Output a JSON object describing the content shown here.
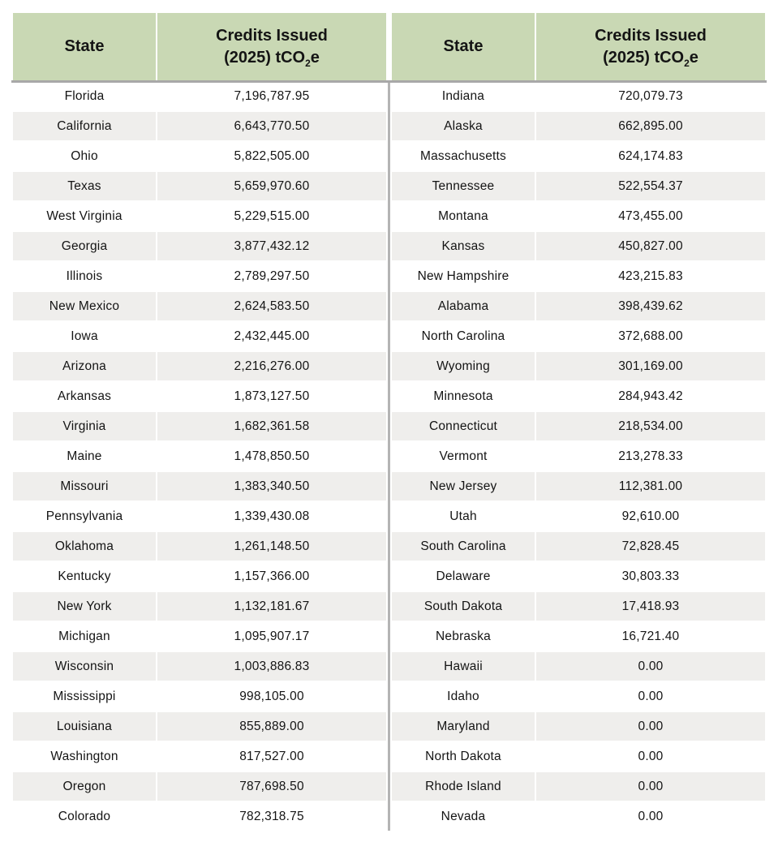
{
  "header": {
    "col_state": "State",
    "col_credits_line1": "Credits Issued",
    "col_credits_line2": {
      "pre": "(2025) tCO",
      "sub": "2",
      "post": "e"
    }
  },
  "colors": {
    "header_bg": "#c9d8b4",
    "row_alt_bg": "#efeeec",
    "header_underline": "#a8a8a8",
    "center_divider": "#b4b4b4",
    "text": "#141414"
  },
  "chart_data": {
    "type": "table",
    "columns": [
      "State",
      "Credits Issued (2025) tCO2e",
      "State",
      "Credits Issued (2025) tCO2e"
    ],
    "left_rows": [
      [
        "Florida",
        "7,196,787.95"
      ],
      [
        "California",
        "6,643,770.50"
      ],
      [
        "Ohio",
        "5,822,505.00"
      ],
      [
        "Texas",
        "5,659,970.60"
      ],
      [
        "West Virginia",
        "5,229,515.00"
      ],
      [
        "Georgia",
        "3,877,432.12"
      ],
      [
        "Illinois",
        "2,789,297.50"
      ],
      [
        "New Mexico",
        "2,624,583.50"
      ],
      [
        "Iowa",
        "2,432,445.00"
      ],
      [
        "Arizona",
        "2,216,276.00"
      ],
      [
        "Arkansas",
        "1,873,127.50"
      ],
      [
        "Virginia",
        "1,682,361.58"
      ],
      [
        "Maine",
        "1,478,850.50"
      ],
      [
        "Missouri",
        "1,383,340.50"
      ],
      [
        "Pennsylvania",
        "1,339,430.08"
      ],
      [
        "Oklahoma",
        "1,261,148.50"
      ],
      [
        "Kentucky",
        "1,157,366.00"
      ],
      [
        "New York",
        "1,132,181.67"
      ],
      [
        "Michigan",
        "1,095,907.17"
      ],
      [
        "Wisconsin",
        "1,003,886.83"
      ],
      [
        "Mississippi",
        "998,105.00"
      ],
      [
        "Louisiana",
        "855,889.00"
      ],
      [
        "Washington",
        "817,527.00"
      ],
      [
        "Oregon",
        "787,698.50"
      ],
      [
        "Colorado",
        "782,318.75"
      ]
    ],
    "right_rows": [
      [
        "Indiana",
        "720,079.73"
      ],
      [
        "Alaska",
        "662,895.00"
      ],
      [
        "Massachusetts",
        "624,174.83"
      ],
      [
        "Tennessee",
        "522,554.37"
      ],
      [
        "Montana",
        "473,455.00"
      ],
      [
        "Kansas",
        "450,827.00"
      ],
      [
        "New Hampshire",
        "423,215.83"
      ],
      [
        "Alabama",
        "398,439.62"
      ],
      [
        "North Carolina",
        "372,688.00"
      ],
      [
        "Wyoming",
        "301,169.00"
      ],
      [
        "Minnesota",
        "284,943.42"
      ],
      [
        "Connecticut",
        "218,534.00"
      ],
      [
        "Vermont",
        "213,278.33"
      ],
      [
        "New Jersey",
        "112,381.00"
      ],
      [
        "Utah",
        "92,610.00"
      ],
      [
        "South Carolina",
        "72,828.45"
      ],
      [
        "Delaware",
        "30,803.33"
      ],
      [
        "South Dakota",
        "17,418.93"
      ],
      [
        "Nebraska",
        "16,721.40"
      ],
      [
        "Hawaii",
        "0.00"
      ],
      [
        "Idaho",
        "0.00"
      ],
      [
        "Maryland",
        "0.00"
      ],
      [
        "North Dakota",
        "0.00"
      ],
      [
        "Rhode Island",
        "0.00"
      ],
      [
        "Nevada",
        "0.00"
      ]
    ]
  }
}
